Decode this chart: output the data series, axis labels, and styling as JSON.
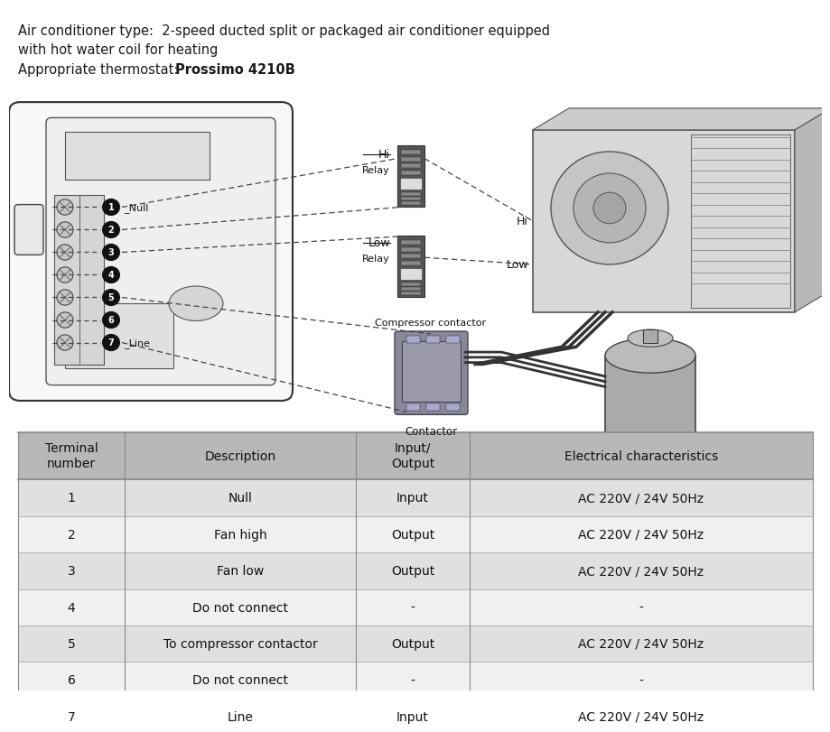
{
  "header_line1": "Air conditioner type:  2-speed ducted split or packaged air conditioner equipped",
  "header_line2": "with hot water coil for heating",
  "header_line3_normal": "Appropriate thermostat: ",
  "header_line3_bold": "Prossimo 4210B",
  "table_header_bg": "#b8b8b8",
  "table_row_bg_odd": "#e0e0e0",
  "table_row_bg_even": "#f0f0f0",
  "table_headers": [
    "Terminal\nnumber",
    "Description",
    "Input/\nOutput",
    "Electrical characteristics"
  ],
  "table_rows": [
    [
      "1",
      "Null",
      "Input",
      "AC 220V / 24V 50Hz"
    ],
    [
      "2",
      "Fan high",
      "Output",
      "AC 220V / 24V 50Hz"
    ],
    [
      "3",
      "Fan low",
      "Output",
      "AC 220V / 24V 50Hz"
    ],
    [
      "4",
      "Do not connect",
      "-",
      "-"
    ],
    [
      "5",
      "To compressor contactor",
      "Output",
      "AC 220V / 24V 50Hz"
    ],
    [
      "6",
      "Do not connect",
      "-",
      "-"
    ],
    [
      "7",
      "Line",
      "Input",
      "AC 220V / 24V 50Hz"
    ]
  ],
  "bg_color": "#ffffff",
  "line_color": "#333333",
  "dash_color": "#444444"
}
